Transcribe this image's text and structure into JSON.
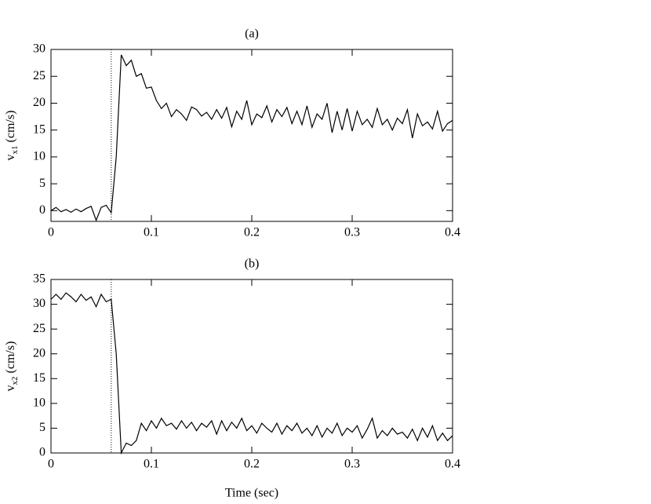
{
  "chart_data": [
    {
      "type": "line",
      "title": "(a)",
      "ylabel": {
        "base": "v",
        "sub": "x1",
        "unit": "(cm/s)"
      },
      "x": [
        0,
        0.005,
        0.01,
        0.015,
        0.02,
        0.025,
        0.03,
        0.035,
        0.04,
        0.045,
        0.05,
        0.055,
        0.06,
        0.065,
        0.07,
        0.075,
        0.08,
        0.085,
        0.09,
        0.095,
        0.1,
        0.105,
        0.11,
        0.115,
        0.12,
        0.125,
        0.13,
        0.135,
        0.14,
        0.145,
        0.15,
        0.155,
        0.16,
        0.165,
        0.17,
        0.175,
        0.18,
        0.185,
        0.19,
        0.195,
        0.2,
        0.205,
        0.21,
        0.215,
        0.22,
        0.225,
        0.23,
        0.235,
        0.24,
        0.245,
        0.25,
        0.255,
        0.26,
        0.265,
        0.27,
        0.275,
        0.28,
        0.285,
        0.29,
        0.295,
        0.3,
        0.305,
        0.31,
        0.315,
        0.32,
        0.325,
        0.33,
        0.335,
        0.34,
        0.345,
        0.35,
        0.355,
        0.36,
        0.365,
        0.37,
        0.375,
        0.38,
        0.385,
        0.39,
        0.395,
        0.4
      ],
      "values": [
        0,
        0.6,
        -0.2,
        0.2,
        -0.3,
        0.3,
        -0.2,
        0.4,
        0.8,
        -1.8,
        0.6,
        1,
        -0.4,
        10,
        29,
        27,
        28,
        25,
        25.5,
        22.8,
        23,
        20.5,
        19,
        20,
        17.5,
        18.8,
        18,
        16.8,
        19.3,
        18.8,
        17.6,
        18.3,
        17,
        18.8,
        17.2,
        19.2,
        15.6,
        18.5,
        17,
        20.5,
        16,
        18,
        17.3,
        19.5,
        16.5,
        18.8,
        17.5,
        19.2,
        16.2,
        18.5,
        16,
        19.5,
        15.5,
        18,
        17,
        20,
        14.5,
        18.5,
        15,
        19,
        14.8,
        18.5,
        16,
        17,
        15.5,
        19,
        16,
        17,
        15,
        17.2,
        16.2,
        18.8,
        13.5,
        18,
        15.8,
        16.5,
        15.2,
        18.5,
        14.8,
        16.2,
        16.8
      ],
      "color": "#000000",
      "vline": 0.06,
      "xlim": [
        0,
        0.4
      ],
      "xticks": [
        0,
        0.1,
        0.2,
        0.3,
        0.4
      ],
      "ylim": [
        -2,
        30
      ],
      "yticks": [
        0,
        5,
        10,
        15,
        20,
        25,
        30
      ]
    },
    {
      "type": "line",
      "title": "(b)",
      "ylabel": {
        "base": "v",
        "sub": "x2",
        "unit": "(cm/s)"
      },
      "xlabel": "Time (sec)",
      "x": [
        0,
        0.005,
        0.01,
        0.015,
        0.02,
        0.025,
        0.03,
        0.035,
        0.04,
        0.045,
        0.05,
        0.055,
        0.06,
        0.065,
        0.07,
        0.075,
        0.08,
        0.085,
        0.09,
        0.095,
        0.1,
        0.105,
        0.11,
        0.115,
        0.12,
        0.125,
        0.13,
        0.135,
        0.14,
        0.145,
        0.15,
        0.155,
        0.16,
        0.165,
        0.17,
        0.175,
        0.18,
        0.185,
        0.19,
        0.195,
        0.2,
        0.205,
        0.21,
        0.215,
        0.22,
        0.225,
        0.23,
        0.235,
        0.24,
        0.245,
        0.25,
        0.255,
        0.26,
        0.265,
        0.27,
        0.275,
        0.28,
        0.285,
        0.29,
        0.295,
        0.3,
        0.305,
        0.31,
        0.315,
        0.32,
        0.325,
        0.33,
        0.335,
        0.34,
        0.345,
        0.35,
        0.355,
        0.36,
        0.365,
        0.37,
        0.375,
        0.38,
        0.385,
        0.39,
        0.395,
        0.4
      ],
      "values": [
        31,
        32,
        31,
        32.3,
        31.5,
        30.5,
        32,
        30.8,
        31.5,
        29.5,
        32,
        30.5,
        31,
        20,
        0,
        2,
        1.5,
        2.5,
        6,
        4.5,
        6.5,
        5,
        7,
        5.5,
        6,
        4.8,
        6.5,
        5,
        6.2,
        4.5,
        6,
        5.2,
        6.5,
        3.8,
        6.5,
        4.5,
        6.2,
        5,
        7,
        4.5,
        5.5,
        4,
        6,
        5,
        4.2,
        6,
        3.8,
        5.5,
        4.5,
        6,
        4,
        5,
        3.5,
        5.5,
        3.2,
        5,
        4,
        6,
        3.5,
        5,
        4.2,
        5.5,
        3,
        4.8,
        7,
        3,
        4.5,
        3.5,
        5,
        3.8,
        4.2,
        3,
        4.8,
        2.5,
        5,
        3.2,
        5.5,
        2.5,
        4,
        2.5,
        3.5
      ],
      "color": "#000000",
      "vline": 0.06,
      "xlim": [
        0,
        0.4
      ],
      "xticks": [
        0,
        0.1,
        0.2,
        0.3,
        0.4
      ],
      "ylim": [
        0,
        35
      ],
      "yticks": [
        0,
        5,
        10,
        15,
        20,
        25,
        30,
        35
      ]
    }
  ]
}
